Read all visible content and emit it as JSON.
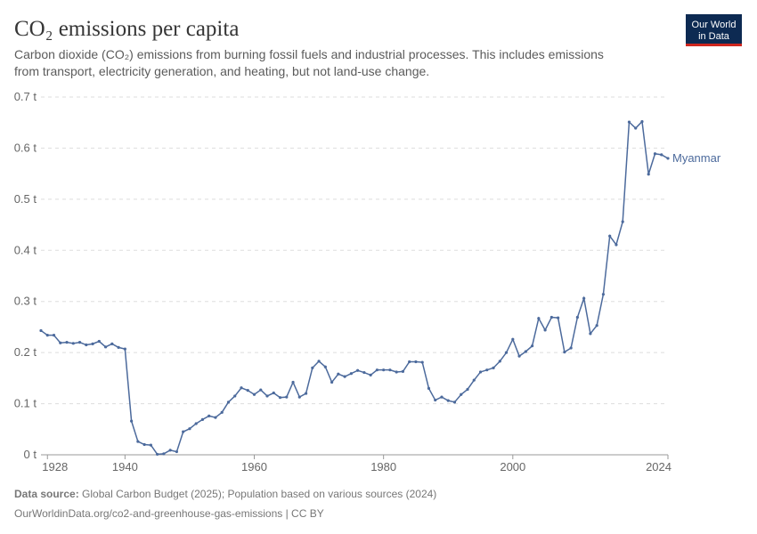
{
  "chart_data": {
    "type": "line",
    "title": "CO₂ emissions per capita",
    "subtitle_lines": [
      "Carbon dioxide (CO₂) emissions from burning fossil fuels and industrial processes. This includes emissions",
      "from transport, electricity generation, and heating, but not land-use change."
    ],
    "logo_lines": [
      "Our World",
      "in Data"
    ],
    "source_label": "Data source:",
    "source_text": "Global Carbon Budget (2025); Population based on various sources (2024)",
    "footer_link": "OurWorldinData.org/co2-and-greenhouse-gas-emissions | CC BY",
    "x": [
      1927,
      1928,
      1929,
      1930,
      1931,
      1932,
      1933,
      1934,
      1935,
      1936,
      1937,
      1938,
      1939,
      1940,
      1941,
      1942,
      1943,
      1944,
      1945,
      1946,
      1947,
      1948,
      1949,
      1950,
      1951,
      1952,
      1953,
      1954,
      1955,
      1956,
      1957,
      1958,
      1959,
      1960,
      1961,
      1962,
      1963,
      1964,
      1965,
      1966,
      1967,
      1968,
      1969,
      1970,
      1971,
      1972,
      1973,
      1974,
      1975,
      1976,
      1977,
      1978,
      1979,
      1980,
      1981,
      1982,
      1983,
      1984,
      1985,
      1986,
      1987,
      1988,
      1989,
      1990,
      1991,
      1992,
      1993,
      1994,
      1995,
      1996,
      1997,
      1998,
      1999,
      2000,
      2001,
      2002,
      2003,
      2004,
      2005,
      2006,
      2007,
      2008,
      2009,
      2010,
      2011,
      2012,
      2013,
      2014,
      2015,
      2016,
      2017,
      2018,
      2019,
      2020,
      2021,
      2022,
      2023,
      2024
    ],
    "series": [
      {
        "name": "Myanmar",
        "color": "#4c6a9c",
        "values": [
          0.243,
          0.234,
          0.234,
          0.219,
          0.22,
          0.218,
          0.22,
          0.215,
          0.217,
          0.222,
          0.211,
          0.217,
          0.21,
          0.207,
          0.066,
          0.026,
          0.02,
          0.019,
          0.001,
          0.002,
          0.009,
          0.006,
          0.045,
          0.051,
          0.061,
          0.069,
          0.076,
          0.073,
          0.083,
          0.103,
          0.115,
          0.131,
          0.126,
          0.118,
          0.127,
          0.115,
          0.121,
          0.112,
          0.113,
          0.142,
          0.113,
          0.12,
          0.17,
          0.183,
          0.172,
          0.142,
          0.158,
          0.153,
          0.159,
          0.165,
          0.161,
          0.156,
          0.166,
          0.166,
          0.166,
          0.162,
          0.163,
          0.182,
          0.182,
          0.181,
          0.13,
          0.107,
          0.113,
          0.106,
          0.103,
          0.118,
          0.128,
          0.146,
          0.162,
          0.166,
          0.17,
          0.183,
          0.2,
          0.226,
          0.193,
          0.202,
          0.213,
          0.267,
          0.244,
          0.269,
          0.268,
          0.201,
          0.209,
          0.269,
          0.306,
          0.237,
          0.253,
          0.314,
          0.428,
          0.411,
          0.456,
          0.651,
          0.639,
          0.652,
          0.549,
          0.589,
          0.587,
          0.58
        ]
      }
    ],
    "xlim": [
      1927,
      2024
    ],
    "xticks": [
      1928,
      1940,
      1960,
      1980,
      2000,
      2024
    ],
    "ylim": [
      0,
      0.7
    ],
    "yticks": [
      {
        "value": 0,
        "label": "0 t"
      },
      {
        "value": 0.1,
        "label": "0.1 t"
      },
      {
        "value": 0.2,
        "label": "0.2 t"
      },
      {
        "value": 0.3,
        "label": "0.3 t"
      },
      {
        "value": 0.4,
        "label": "0.4 t"
      },
      {
        "value": 0.5,
        "label": "0.5 t"
      },
      {
        "value": 0.6,
        "label": "0.6 t"
      },
      {
        "value": 0.7,
        "label": "0.7 t"
      }
    ],
    "grid": true
  }
}
